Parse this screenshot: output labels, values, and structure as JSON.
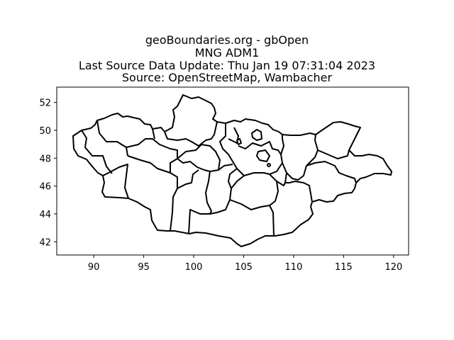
{
  "title_lines": [
    "geoBoundaries.org - gbOpen",
    "MNG ADM1",
    "Last Source Data Update: Thu Jan 19 07:31:04 2023",
    "Source: OpenStreetMap, Wambacher"
  ],
  "x_ticks": [
    "90",
    "95",
    "100",
    "105",
    "110",
    "115",
    "120"
  ],
  "y_ticks": [
    "42",
    "44",
    "46",
    "48",
    "50",
    "52"
  ],
  "chart_data": {
    "type": "map",
    "title": "geoBoundaries.org - gbOpen\nMNG ADM1\nLast Source Data Update: Thu Jan 19 07:31:04 2023\nSource: OpenStreetMap, Wambacher",
    "xlim": [
      86.3,
      121.5
    ],
    "ylim": [
      41.05,
      53.1
    ],
    "x_tick_values": [
      90,
      95,
      100,
      105,
      110,
      115,
      120
    ],
    "y_tick_values": [
      42,
      44,
      46,
      48,
      50,
      52
    ],
    "outline_color": "#000000",
    "fill_color": "#ffffff"
  }
}
